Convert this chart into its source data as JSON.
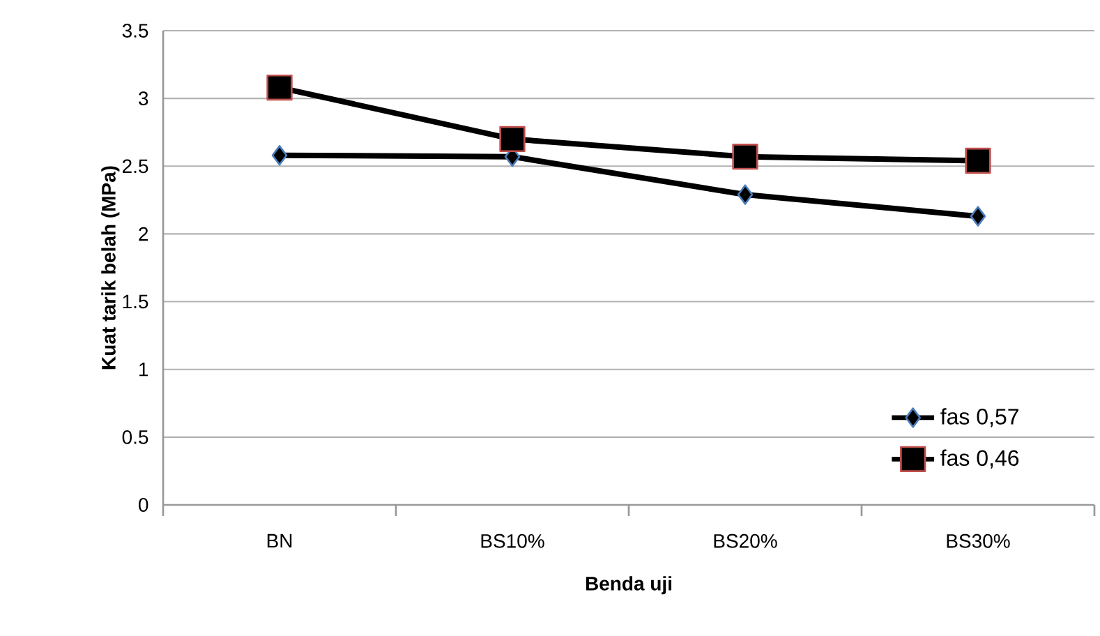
{
  "chart_data": {
    "type": "line",
    "xlabel": "Benda uji",
    "ylabel": "Kuat tarik belah (MPa)",
    "categories": [
      "BN",
      "BS10%",
      "BS20%",
      "BS30%"
    ],
    "series": [
      {
        "name": "fas 0,57",
        "color": "#000000",
        "marker": "diamond",
        "values": [
          2.58,
          2.57,
          2.29,
          2.13
        ]
      },
      {
        "name": "fas 0,46",
        "color": "#000000",
        "marker": "square",
        "values": [
          3.08,
          2.7,
          2.57,
          2.54
        ]
      }
    ],
    "ylim": [
      0,
      3.5
    ],
    "yticks": [
      0,
      0.5,
      1,
      1.5,
      2,
      2.5,
      3,
      3.5
    ],
    "grid": "y",
    "legend": "bottom right",
    "line_style": "solid"
  }
}
